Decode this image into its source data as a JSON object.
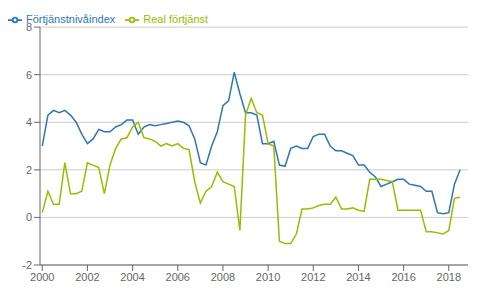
{
  "chart_data": {
    "type": "line",
    "x": [
      2000.0,
      2000.25,
      2000.5,
      2000.75,
      2001.0,
      2001.25,
      2001.5,
      2001.75,
      2002.0,
      2002.25,
      2002.5,
      2002.75,
      2003.0,
      2003.25,
      2003.5,
      2003.75,
      2004.0,
      2004.25,
      2004.5,
      2004.75,
      2005.0,
      2005.25,
      2005.5,
      2005.75,
      2006.0,
      2006.25,
      2006.5,
      2006.75,
      2007.0,
      2007.25,
      2007.5,
      2007.75,
      2008.0,
      2008.25,
      2008.5,
      2008.75,
      2009.0,
      2009.25,
      2009.5,
      2009.75,
      2010.0,
      2010.25,
      2010.5,
      2010.75,
      2011.0,
      2011.25,
      2011.5,
      2011.75,
      2012.0,
      2012.25,
      2012.5,
      2012.75,
      2013.0,
      2013.25,
      2013.5,
      2013.75,
      2014.0,
      2014.25,
      2014.5,
      2014.75,
      2015.0,
      2015.25,
      2015.5,
      2015.75,
      2016.0,
      2016.25,
      2016.5,
      2016.75,
      2017.0,
      2017.25,
      2017.5,
      2017.75,
      2018.0,
      2018.25,
      2018.5
    ],
    "series": [
      {
        "name": "Förtjänstnivåindex",
        "color": "#2E75B6",
        "values": [
          3.0,
          4.3,
          4.5,
          4.4,
          4.5,
          4.3,
          4.0,
          3.5,
          3.1,
          3.3,
          3.7,
          3.6,
          3.6,
          3.8,
          3.9,
          4.1,
          4.1,
          3.5,
          3.8,
          3.9,
          3.85,
          3.9,
          3.95,
          4.0,
          4.05,
          4.0,
          3.85,
          3.3,
          2.3,
          2.2,
          3.0,
          3.6,
          4.7,
          4.9,
          6.1,
          5.2,
          4.4,
          4.4,
          4.3,
          3.1,
          3.1,
          3.2,
          2.2,
          2.15,
          2.9,
          3.0,
          2.9,
          2.9,
          3.4,
          3.5,
          3.5,
          3.0,
          2.8,
          2.8,
          2.7,
          2.6,
          2.2,
          2.2,
          1.9,
          1.7,
          1.3,
          1.4,
          1.5,
          1.6,
          1.6,
          1.4,
          1.35,
          1.3,
          1.1,
          1.1,
          0.2,
          0.15,
          0.2,
          1.4,
          2.0
        ]
      },
      {
        "name": "Real förtjänst",
        "color": "#9BBB00",
        "values": [
          0.2,
          1.1,
          0.55,
          0.55,
          2.3,
          1.0,
          1.0,
          1.1,
          2.3,
          2.2,
          2.1,
          1.0,
          2.2,
          2.9,
          3.3,
          3.35,
          3.8,
          4.0,
          3.35,
          3.3,
          3.2,
          3.0,
          3.1,
          3.0,
          3.1,
          2.9,
          2.85,
          1.5,
          0.6,
          1.1,
          1.3,
          1.9,
          1.5,
          1.4,
          1.3,
          -0.55,
          4.3,
          5.0,
          4.4,
          4.3,
          3.1,
          3.0,
          -1.0,
          -1.1,
          -1.1,
          -0.7,
          0.35,
          0.35,
          0.4,
          0.5,
          0.55,
          0.55,
          0.85,
          0.35,
          0.35,
          0.4,
          0.3,
          0.25,
          1.6,
          1.6,
          1.6,
          1.55,
          1.5,
          0.3,
          0.3,
          0.3,
          0.3,
          0.3,
          -0.6,
          -0.6,
          -0.65,
          -0.7,
          -0.55,
          0.8,
          0.85
        ]
      }
    ],
    "xlim": [
      1999.9,
      2018.85
    ],
    "xticks": [
      2000,
      2002,
      2004,
      2006,
      2008,
      2010,
      2012,
      2014,
      2016,
      2018
    ],
    "ylim": [
      -2,
      8
    ],
    "yticks": [
      -2,
      0,
      2,
      4,
      6,
      8
    ],
    "grid": "y",
    "legend": "upper left"
  }
}
